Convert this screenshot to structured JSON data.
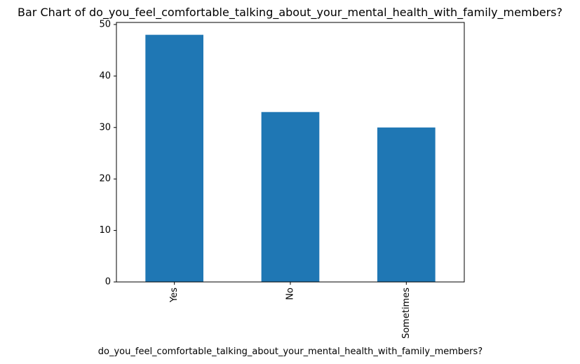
{
  "chart_data": {
    "type": "bar",
    "title": "Bar Chart of do_you_feel_comfortable_talking_about_your_mental_health_with_family_members?",
    "xlabel": "do_you_feel_comfortable_talking_about_your_mental_health_with_family_members?",
    "ylabel": "",
    "categories": [
      "Yes",
      "No",
      "Sometimes"
    ],
    "values": [
      48,
      33,
      30
    ],
    "ylim": [
      0,
      50.4
    ],
    "yticks": [
      0,
      10,
      20,
      30,
      40,
      50
    ],
    "grid": false,
    "legend": "none",
    "bar_color": "#1f77b4"
  }
}
